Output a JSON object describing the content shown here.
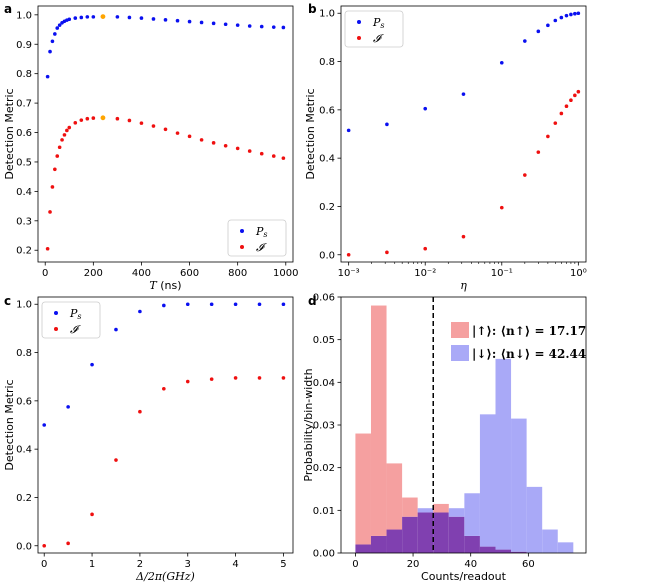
{
  "figure": {
    "axis_ylabel": "Detection Metric"
  },
  "colors": {
    "blue": "#0a10f0",
    "red": "#ef1010",
    "orange": "#ffa500",
    "hist_up": "#f5a0a0",
    "hist_down": "#a9a9f7",
    "overlap": "#8040b0"
  },
  "chart_data": [
    {
      "panel": "a",
      "type": "scatter",
      "xlabel_var": "T",
      "xlabel_unit": "(ns)",
      "ylabel": "Detection Metric",
      "xlim": [
        -30,
        1030
      ],
      "ylim": [
        0.16,
        1.03
      ],
      "xticks": [
        0,
        200,
        400,
        600,
        800,
        1000
      ],
      "yticks": [
        0.2,
        0.3,
        0.4,
        0.5,
        0.6,
        0.7,
        0.8,
        0.9,
        1.0
      ],
      "ytick_labels": [
        "0.2",
        "0.3",
        "0.4",
        "0.5",
        "0.6",
        "0.7",
        "0.8",
        "0.9",
        "1.0"
      ],
      "legend": {
        "loc": "lower right",
        "entries": [
          "P_s",
          "𝓘"
        ]
      },
      "series": [
        {
          "name": "P_s",
          "color": "blue",
          "x": [
            10,
            20,
            30,
            40,
            50,
            60,
            70,
            80,
            90,
            100,
            125,
            150,
            175,
            200,
            240,
            300,
            350,
            400,
            450,
            500,
            550,
            600,
            650,
            700,
            750,
            800,
            850,
            900,
            950,
            990
          ],
          "y": [
            0.79,
            0.875,
            0.91,
            0.935,
            0.955,
            0.965,
            0.973,
            0.978,
            0.982,
            0.985,
            0.989,
            0.991,
            0.993,
            0.993,
            0.994,
            0.993,
            0.991,
            0.989,
            0.986,
            0.983,
            0.98,
            0.977,
            0.974,
            0.971,
            0.968,
            0.965,
            0.962,
            0.96,
            0.958,
            0.957
          ]
        },
        {
          "name": "I",
          "color": "red",
          "x": [
            10,
            20,
            30,
            40,
            50,
            60,
            70,
            80,
            90,
            100,
            125,
            150,
            175,
            200,
            240,
            300,
            350,
            400,
            450,
            500,
            550,
            600,
            650,
            700,
            750,
            800,
            850,
            900,
            950,
            990
          ],
          "y": [
            0.205,
            0.33,
            0.415,
            0.475,
            0.52,
            0.55,
            0.575,
            0.592,
            0.607,
            0.617,
            0.633,
            0.642,
            0.647,
            0.649,
            0.65,
            0.647,
            0.641,
            0.632,
            0.622,
            0.611,
            0.598,
            0.587,
            0.575,
            0.565,
            0.555,
            0.546,
            0.537,
            0.528,
            0.52,
            0.513
          ]
        }
      ],
      "markers": [
        {
          "x": 240,
          "y": 0.994,
          "color": "orange"
        },
        {
          "x": 240,
          "y": 0.65,
          "color": "orange"
        }
      ]
    },
    {
      "panel": "b",
      "type": "scatter",
      "xscale": "log",
      "xlabel_var": "η",
      "ylabel": "Detection Metric",
      "xlim_log10": [
        -3.1,
        0.1
      ],
      "ylim": [
        -0.03,
        1.03
      ],
      "xticks_log10": [
        -3,
        -2,
        -1,
        0
      ],
      "xtick_labels": [
        "10⁻³",
        "10⁻²",
        "10⁻¹",
        "10⁰"
      ],
      "yticks": [
        0,
        0.2,
        0.4,
        0.6,
        0.8,
        1.0
      ],
      "ytick_labels": [
        "0.0",
        "0.2",
        "0.4",
        "0.6",
        "0.8",
        "1.0"
      ],
      "legend": {
        "loc": "upper left",
        "entries": [
          "P_s",
          "𝓘"
        ]
      },
      "series": [
        {
          "name": "P_s",
          "color": "blue",
          "x": [
            0.001,
            0.00316,
            0.01,
            0.0316,
            0.1,
            0.2,
            0.3,
            0.4,
            0.5,
            0.6,
            0.7,
            0.8,
            0.9,
            1.0
          ],
          "y": [
            0.515,
            0.54,
            0.605,
            0.665,
            0.795,
            0.885,
            0.925,
            0.95,
            0.97,
            0.982,
            0.99,
            0.995,
            0.998,
            1.0
          ]
        },
        {
          "name": "I",
          "color": "red",
          "x": [
            0.001,
            0.00316,
            0.01,
            0.0316,
            0.1,
            0.2,
            0.3,
            0.4,
            0.5,
            0.6,
            0.7,
            0.8,
            0.9,
            1.0
          ],
          "y": [
            0.0,
            0.01,
            0.025,
            0.075,
            0.195,
            0.33,
            0.425,
            0.49,
            0.545,
            0.585,
            0.615,
            0.64,
            0.66,
            0.675
          ]
        }
      ]
    },
    {
      "panel": "c",
      "type": "scatter",
      "xlabel": "Δ/2π(GHz)",
      "ylabel": "Detection Metric",
      "xlim": [
        -0.13,
        5.2
      ],
      "ylim": [
        -0.03,
        1.03
      ],
      "xticks": [
        0,
        1,
        2,
        3,
        4,
        5
      ],
      "yticks": [
        0,
        0.2,
        0.4,
        0.6,
        0.8,
        1.0
      ],
      "ytick_labels": [
        "0.0",
        "0.2",
        "0.4",
        "0.6",
        "0.8",
        "1.0"
      ],
      "legend": {
        "loc": "upper left",
        "entries": [
          "P_s",
          "𝓘"
        ]
      },
      "series": [
        {
          "name": "P_s",
          "color": "blue",
          "x": [
            0,
            0.5,
            1,
            1.5,
            2,
            2.5,
            3,
            3.5,
            4,
            4.5,
            5
          ],
          "y": [
            0.5,
            0.575,
            0.75,
            0.895,
            0.97,
            0.995,
            1.0,
            1.0,
            1.0,
            1.0,
            1.0
          ]
        },
        {
          "name": "I",
          "color": "red",
          "x": [
            0,
            0.5,
            1,
            1.5,
            2,
            2.5,
            3,
            3.5,
            4,
            4.5,
            5
          ],
          "y": [
            0.0,
            0.01,
            0.13,
            0.355,
            0.555,
            0.65,
            0.68,
            0.69,
            0.695,
            0.695,
            0.695
          ]
        }
      ]
    },
    {
      "panel": "d",
      "type": "histogram",
      "xlabel": "Counts/readout",
      "ylabel": "Probability/bin-width",
      "xlim": [
        -5,
        80
      ],
      "ylim": [
        0,
        0.06
      ],
      "xticks": [
        0,
        20,
        40,
        60
      ],
      "yticks": [
        0,
        0.01,
        0.02,
        0.03,
        0.04,
        0.05,
        0.06
      ],
      "ytick_labels": [
        "0.00",
        "0.01",
        "0.02",
        "0.03",
        "0.04",
        "0.05",
        "0.06"
      ],
      "bin_edges": [
        0,
        5.4,
        10.8,
        16.2,
        21.6,
        27,
        32.4,
        37.8,
        43.2,
        48.6,
        54,
        59.4,
        64.8,
        70.2,
        75.6
      ],
      "series": [
        {
          "name": "|↑⟩",
          "color": "hist_up",
          "values": [
            0.028,
            0.058,
            0.021,
            0.013,
            0.0095,
            0.0115,
            0.0085,
            0.004,
            0.0015,
            0.0008,
            0.0003,
            0,
            0,
            0
          ]
        },
        {
          "name": "|↓⟩",
          "color": "hist_down",
          "values": [
            0.002,
            0.004,
            0.0055,
            0.0085,
            0.0105,
            0.0095,
            0.0105,
            0.014,
            0.0325,
            0.0455,
            0.0315,
            0.0155,
            0.0055,
            0.0025
          ]
        }
      ],
      "threshold": 27,
      "legend": {
        "loc": "upper right",
        "entries": [
          {
            "state": "|↑⟩",
            "label": "⟨n↑⟩ = 17.17",
            "color": "hist_up"
          },
          {
            "state": "|↓⟩",
            "label": "⟨n↓⟩ = 42.44",
            "color": "hist_down"
          }
        ]
      }
    }
  ],
  "panel_letters": [
    "a",
    "b",
    "c",
    "d"
  ]
}
